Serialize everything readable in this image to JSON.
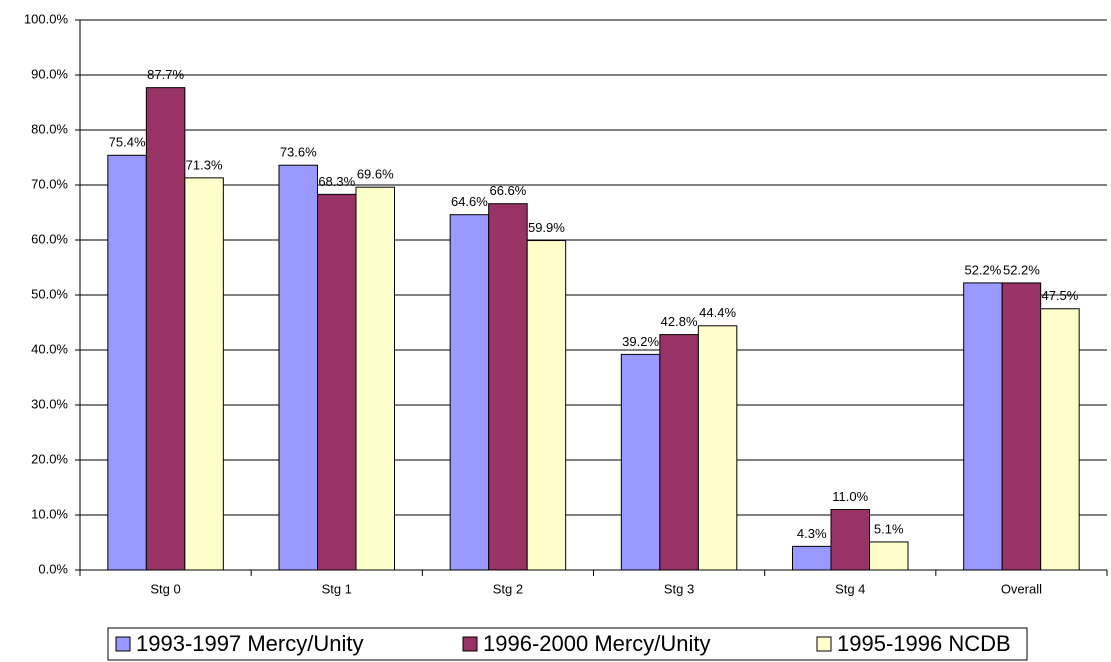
{
  "chart_data": {
    "type": "bar",
    "categories": [
      "Stg 0",
      "Stg 1",
      "Stg 2",
      "Stg 3",
      "Stg 4",
      "Overall"
    ],
    "series": [
      {
        "name": "1993-1997 Mercy/Unity",
        "color": "#9999ff",
        "values": [
          75.4,
          73.6,
          64.6,
          39.2,
          4.3,
          52.2
        ],
        "value_labels": [
          "75.4%",
          "73.6%",
          "64.6%",
          "39.2%",
          "4.3%",
          "52.2%"
        ]
      },
      {
        "name": "1996-2000 Mercy/Unity",
        "color": "#993366",
        "values": [
          87.7,
          68.3,
          66.6,
          42.8,
          11.0,
          52.2
        ],
        "value_labels": [
          "87.7%",
          "68.3%",
          "66.6%",
          "42.8%",
          "11.0%",
          "52.2%"
        ]
      },
      {
        "name": "1995-1996 NCDB",
        "color": "#ffffcc",
        "values": [
          71.3,
          69.6,
          59.9,
          44.4,
          5.1,
          47.5
        ],
        "value_labels": [
          "71.3%",
          "69.6%",
          "59.9%",
          "44.4%",
          "5.1%",
          "47.5%"
        ]
      }
    ],
    "ylim": [
      0,
      100
    ],
    "yticks": [
      {
        "value": 0,
        "label": "0.0%"
      },
      {
        "value": 10,
        "label": "10.0%"
      },
      {
        "value": 20,
        "label": "20.0%"
      },
      {
        "value": 30,
        "label": "30.0%"
      },
      {
        "value": 40,
        "label": "40.0%"
      },
      {
        "value": 50,
        "label": "50.0%"
      },
      {
        "value": 60,
        "label": "60.0%"
      },
      {
        "value": 70,
        "label": "70.0%"
      },
      {
        "value": 80,
        "label": "80.0%"
      },
      {
        "value": 90,
        "label": "90.0%"
      },
      {
        "value": 100,
        "label": "100.0%"
      }
    ],
    "grid": true,
    "legend": "bottom"
  }
}
